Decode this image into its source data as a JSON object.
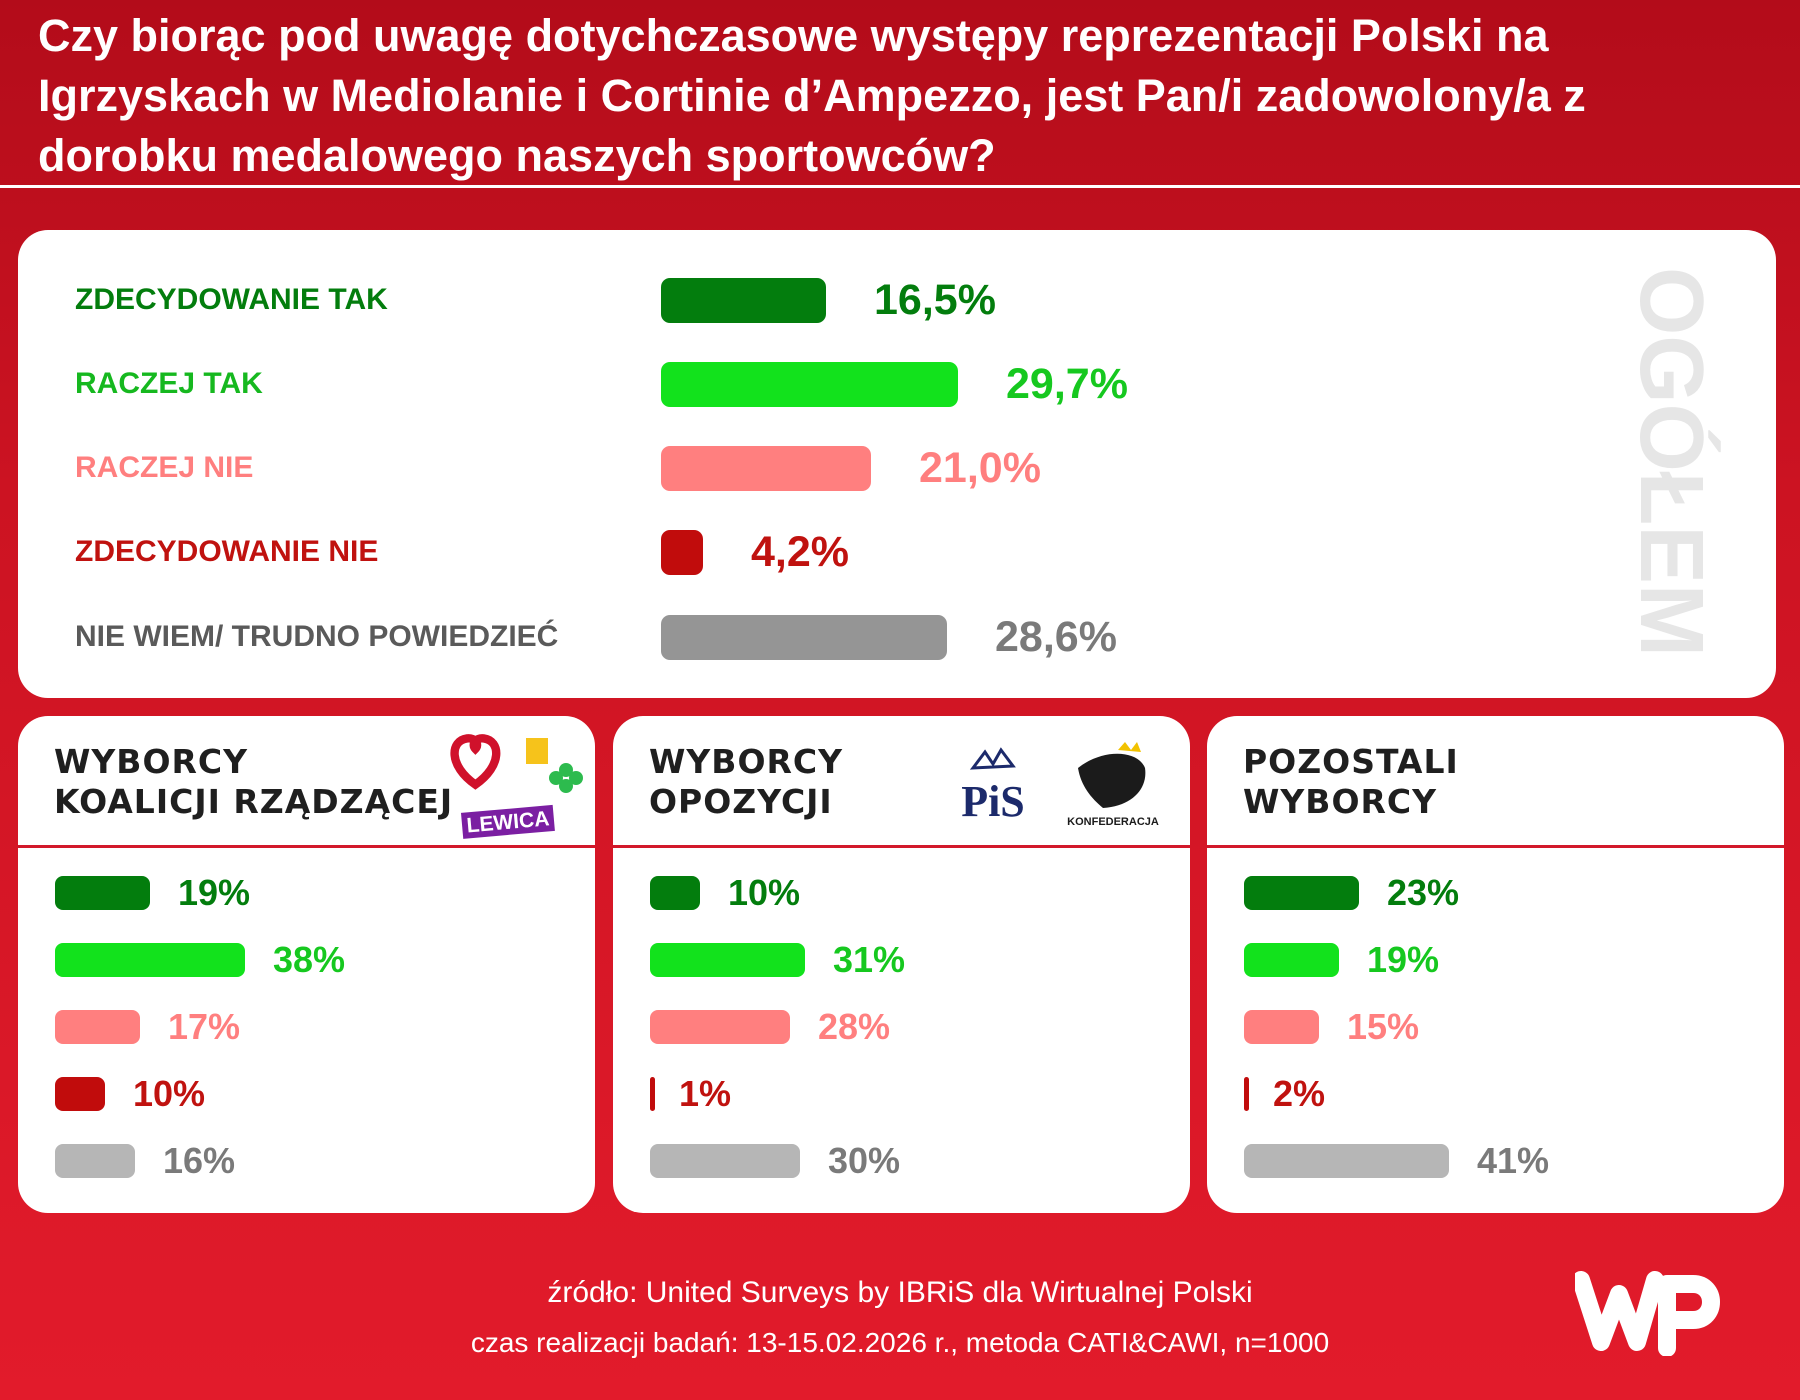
{
  "title": "Czy biorąc pod uwagę dotychczasowe występy reprezentacji Polski na Igrzyskach w Mediolanie i Cortinie d’Ampezzo, jest Pan/i zadowolony/a z dorobku medalowego naszych sportowców?",
  "colors": {
    "zdecydowanie_tak": "#037d0d",
    "raczej_tak": "#12e21c",
    "raczej_nie": "#ff7f7f",
    "zdecydowanie_nie": "#c10c0c",
    "nie_wiem": "#959595",
    "nie_wiem_light": "#b6b6b6",
    "background": "#d2182a"
  },
  "chart_data": [
    {
      "type": "bar",
      "side_label": "OGÓŁEM",
      "categories": [
        "ZDECYDOWANIE TAK",
        "RACZEJ TAK",
        "RACZEJ NIE",
        "ZDECYDOWANIE NIE",
        "NIE WIEM/ TRUDNO POWIEDZIEĆ"
      ],
      "values": [
        16.5,
        29.7,
        21.0,
        4.2,
        28.6
      ],
      "value_labels": [
        "16,5%",
        "29,7%",
        "21,0%",
        "4,2%",
        "28,6%"
      ]
    },
    {
      "type": "bar",
      "title": [
        "WYBORCY",
        "KOALICJI RZĄDZĄCEJ"
      ],
      "logo_text": "LEWICA",
      "values": [
        19,
        38,
        17,
        10,
        16
      ],
      "value_labels": [
        "19%",
        "38%",
        "17%",
        "10%",
        "16%"
      ]
    },
    {
      "type": "bar",
      "title": [
        "WYBORCY",
        "OPOZYCJI"
      ],
      "logo_text": [
        "PiS",
        "KONFEDERACJA"
      ],
      "values": [
        10,
        31,
        28,
        1,
        30
      ],
      "value_labels": [
        "10%",
        "31%",
        "28%",
        "1%",
        "30%"
      ]
    },
    {
      "type": "bar",
      "title": [
        "POZOSTALI",
        "WYBORCY"
      ],
      "values": [
        23,
        19,
        15,
        2,
        41
      ],
      "value_labels": [
        "23%",
        "19%",
        "15%",
        "2%",
        "41%"
      ]
    }
  ],
  "footer": {
    "source": "źródło: United Surveys by IBRiS dla Wirtualnej Polski",
    "details": "czas realizacji badań: 13-15.02.2026 r., metoda CATI&CAWI, n=1000"
  }
}
